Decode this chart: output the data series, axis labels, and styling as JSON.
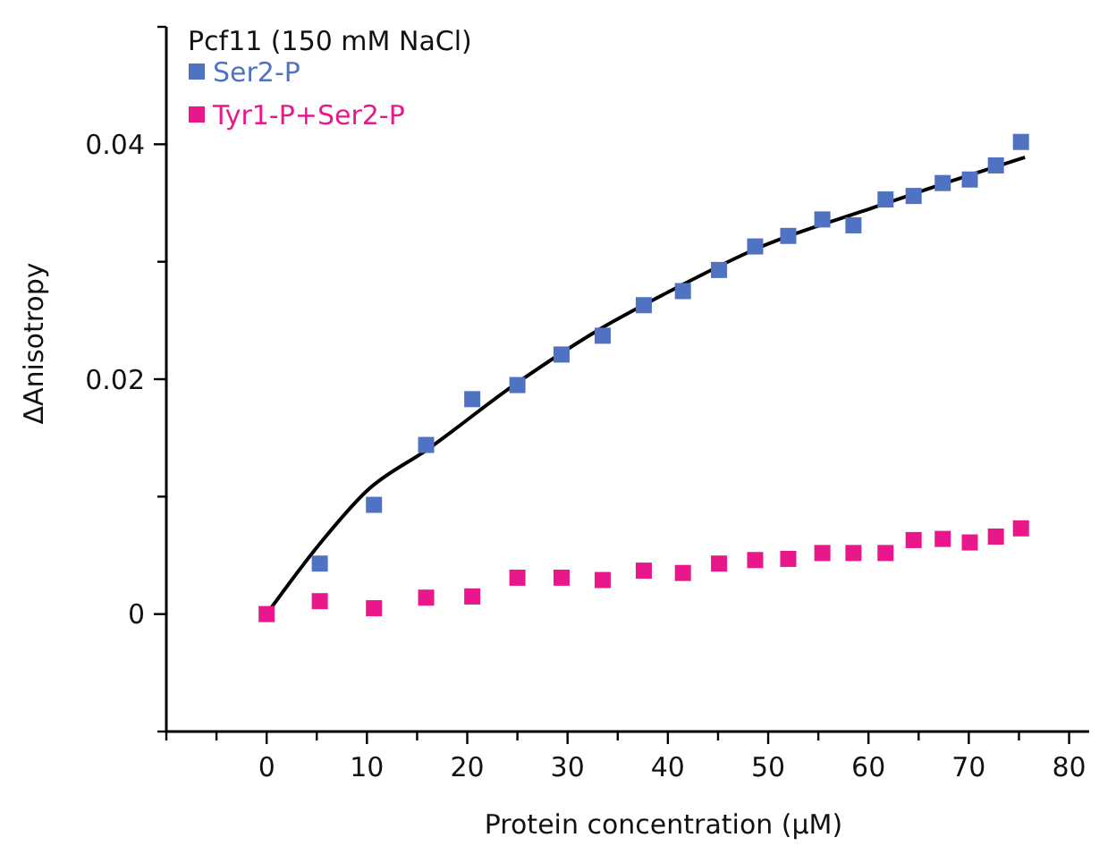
{
  "chart_data": {
    "type": "scatter",
    "title": "Pcf11 (150 mM NaCl)",
    "xlabel": "Protein concentration (µM)",
    "ylabel": "ΔAnisotropy",
    "x": [
      0,
      5.3,
      10.7,
      15.9,
      20.5,
      25,
      29.4,
      33.5,
      37.6,
      41.5,
      45.1,
      48.7,
      52,
      55.4,
      58.5,
      61.7,
      64.5,
      67.4,
      70.1,
      72.7,
      75.2
    ],
    "series": [
      {
        "name": "Ser2-P",
        "color": "#4f73c2",
        "values": [
          null,
          0.0043,
          0.0093,
          0.0144,
          0.0183,
          0.0195,
          0.0221,
          0.0237,
          0.0263,
          0.0275,
          0.0293,
          0.0313,
          0.0322,
          0.0336,
          0.0331,
          0.0353,
          0.0356,
          0.0367,
          0.037,
          0.0382,
          0.0402
        ]
      },
      {
        "name": "Tyr1-P+Ser2-P",
        "color": "#e8178a",
        "values": [
          0,
          0.0011,
          0.0005,
          0.0014,
          0.0015,
          0.0031,
          0.0031,
          0.0029,
          0.0037,
          0.0035,
          0.0043,
          0.0046,
          0.0047,
          0.0052,
          0.0052,
          0.0052,
          0.0063,
          0.0064,
          0.0061,
          0.0066,
          0.0073
        ]
      },
      {
        "type": "line",
        "color": "#000000",
        "marker": "none",
        "x": [
          0,
          5.5,
          10,
          16,
          25,
          33.5,
          40,
          48.8,
          60.8,
          68,
          75.6
        ],
        "values": [
          0,
          0.0062,
          0.0105,
          0.014,
          0.0197,
          0.0244,
          0.0274,
          0.0311,
          0.0347,
          0.0368,
          0.0389
        ]
      }
    ],
    "xlim": [
      -10,
      82
    ],
    "ylim": [
      -0.01,
      0.05
    ],
    "xticks": [
      {
        "value": -10,
        "label": null
      },
      {
        "value": -5,
        "label": null
      },
      0,
      {
        "value": 5,
        "label": null
      },
      10,
      {
        "value": 15,
        "label": null
      },
      20,
      {
        "value": 25,
        "label": null
      },
      30,
      {
        "value": 35,
        "label": null
      },
      40,
      {
        "value": 45,
        "label": null
      },
      50,
      {
        "value": 55,
        "label": null
      },
      60,
      {
        "value": 65,
        "label": null
      },
      70,
      {
        "value": 75,
        "label": null
      },
      80
    ],
    "yticks": [
      {
        "value": -0.01,
        "label": null
      },
      0,
      {
        "value": 0.01,
        "label": null
      },
      0.02,
      {
        "value": 0.03,
        "label": null
      },
      0.04,
      {
        "value": 0.05,
        "label": null
      }
    ],
    "marker": "square",
    "legend": "top left",
    "grid": false
  }
}
